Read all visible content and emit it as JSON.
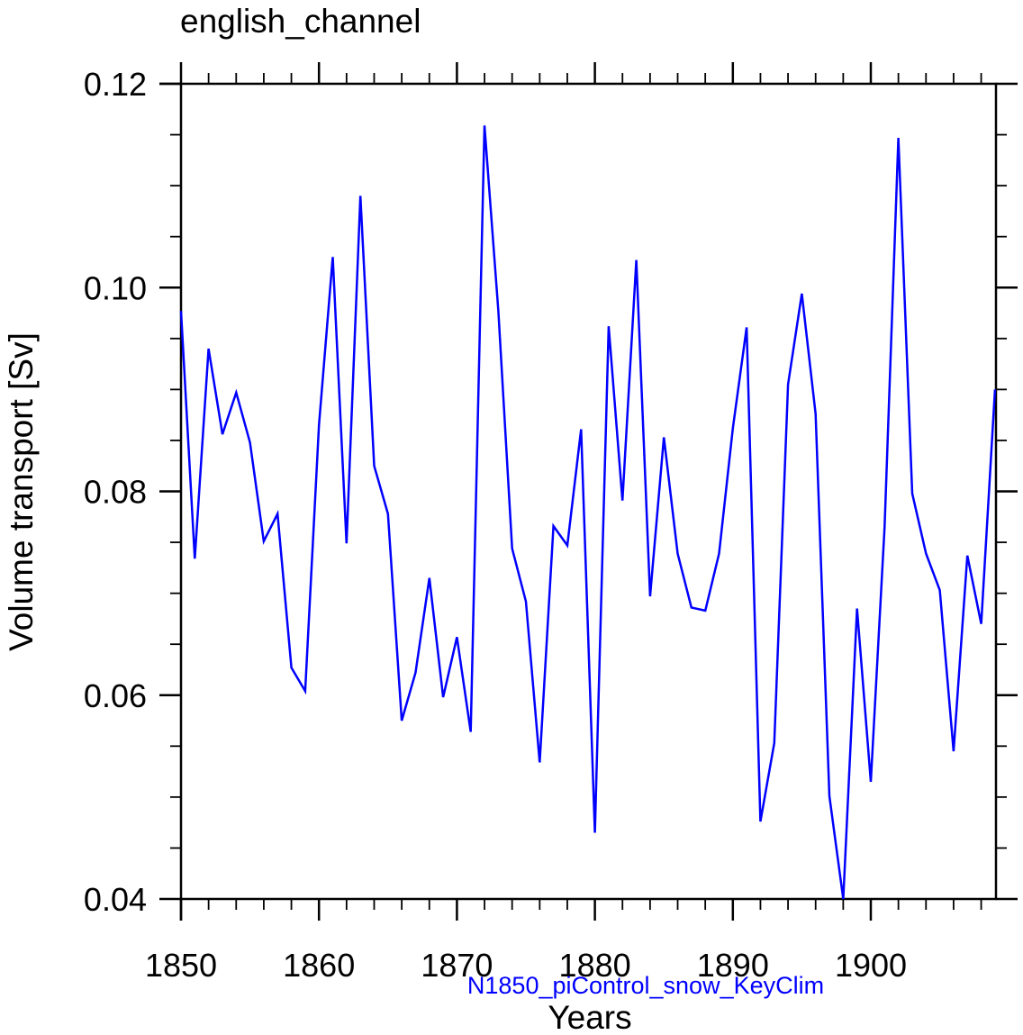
{
  "chart_data": {
    "type": "line",
    "title": "english_channel",
    "xlabel": "Years",
    "ylabel": "Volume transport [Sv]",
    "xlim": [
      1850,
      1909
    ],
    "ylim": [
      0.04,
      0.12
    ],
    "grid": false,
    "x_ticks": [
      1850,
      1860,
      1870,
      1880,
      1890,
      1900
    ],
    "x_tick_labels": [
      "1850",
      "1860",
      "1870",
      "1880",
      "1890",
      "1900"
    ],
    "y_ticks": [
      0.04,
      0.06,
      0.08,
      0.1,
      0.12
    ],
    "y_tick_labels": [
      "0.04",
      "0.06",
      "0.08",
      "0.10",
      "0.12"
    ],
    "legend": {
      "position": "bottom-center",
      "entries": [
        "N1850_piControl_snow_KeyClim"
      ]
    },
    "series": [
      {
        "name": "N1850_piControl_snow_KeyClim",
        "color": "#0000ff",
        "x": [
          1850,
          1851,
          1852,
          1853,
          1854,
          1855,
          1856,
          1857,
          1858,
          1859,
          1860,
          1861,
          1862,
          1863,
          1864,
          1865,
          1866,
          1867,
          1868,
          1869,
          1870,
          1871,
          1872,
          1873,
          1874,
          1875,
          1876,
          1877,
          1878,
          1879,
          1880,
          1881,
          1882,
          1883,
          1884,
          1885,
          1886,
          1887,
          1888,
          1889,
          1890,
          1891,
          1892,
          1893,
          1894,
          1895,
          1896,
          1897,
          1898,
          1899,
          1900,
          1901,
          1902,
          1903,
          1904,
          1905,
          1906,
          1907,
          1908,
          1909
        ],
        "values": [
          0.0977,
          0.0734,
          0.094,
          0.0856,
          0.0897,
          0.0848,
          0.0751,
          0.0778,
          0.0627,
          0.0604,
          0.0865,
          0.103,
          0.0749,
          0.109,
          0.0825,
          0.0778,
          0.0575,
          0.0622,
          0.0715,
          0.0598,
          0.0657,
          0.0564,
          0.1159,
          0.0977,
          0.0744,
          0.0692,
          0.0534,
          0.0766,
          0.0747,
          0.0861,
          0.0465,
          0.0962,
          0.0791,
          0.1027,
          0.0697,
          0.0853,
          0.0739,
          0.0686,
          0.0683,
          0.0739,
          0.0862,
          0.0961,
          0.0476,
          0.0553,
          0.0905,
          0.0994,
          0.0876,
          0.0501,
          0.04,
          0.0685,
          0.0515,
          0.0765,
          0.1147,
          0.0798,
          0.0739,
          0.0703,
          0.0545,
          0.0737,
          0.067,
          0.09
        ]
      }
    ]
  },
  "colors": {
    "axis": "#000000",
    "line": "#0000ff",
    "legend_text": "#0000ff"
  }
}
